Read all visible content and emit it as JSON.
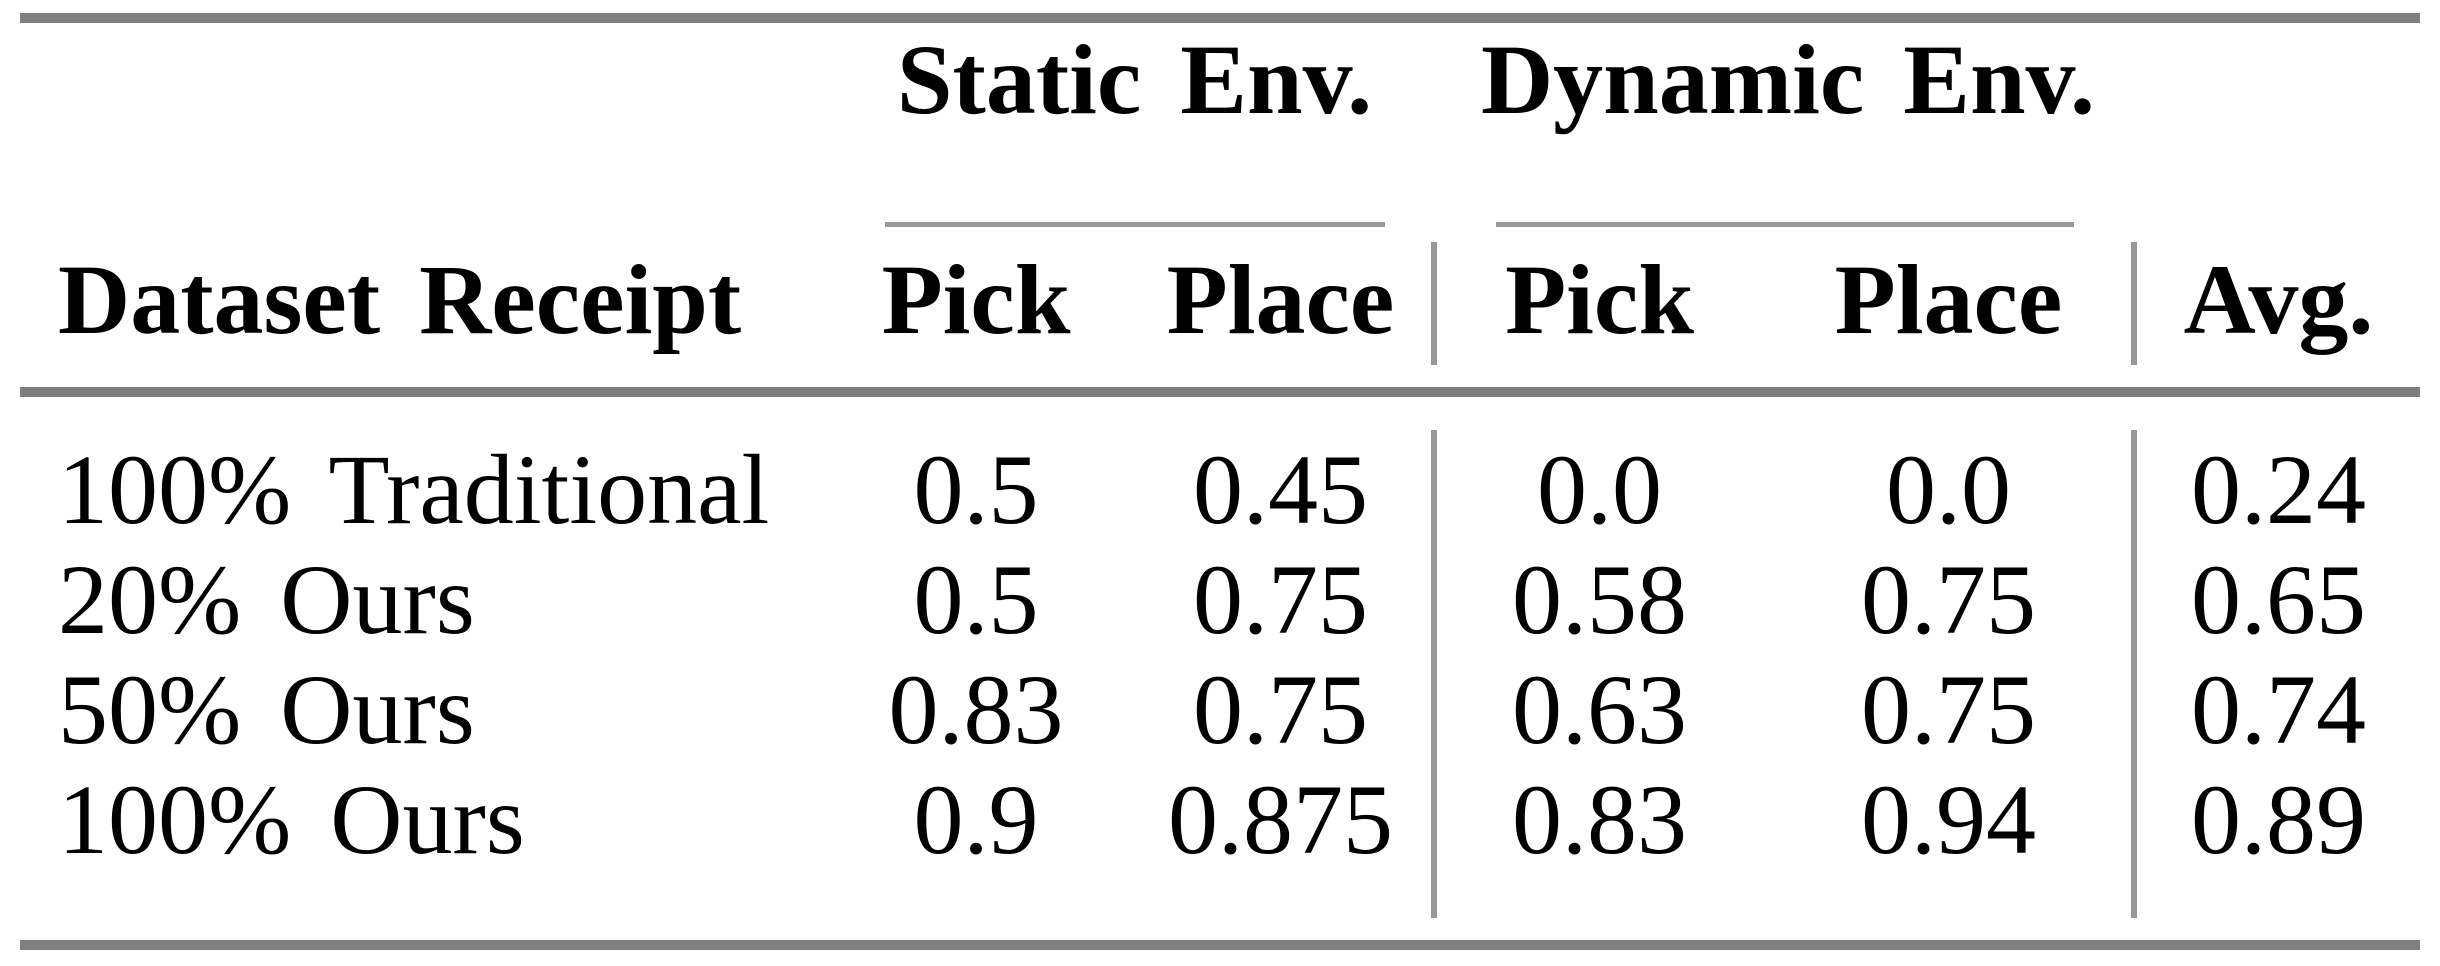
{
  "table": {
    "group_headers": [
      {
        "label": "Static Env."
      },
      {
        "label": "Dynamic Env."
      }
    ],
    "columns": {
      "dataset": "Dataset Receipt",
      "static_pick": "Pick",
      "static_place": "Place",
      "dynamic_pick": "Pick",
      "dynamic_place": "Place",
      "avg": "Avg."
    },
    "rows": [
      {
        "label": "100% Traditional",
        "static_pick": "0.5",
        "static_place": "0.45",
        "dynamic_pick": "0.0",
        "dynamic_place": "0.0",
        "avg": "0.24"
      },
      {
        "label": "20% Ours",
        "static_pick": "0.5",
        "static_place": "0.75",
        "dynamic_pick": "0.58",
        "dynamic_place": "0.75",
        "avg": "0.65"
      },
      {
        "label": "50% Ours",
        "static_pick": "0.83",
        "static_place": "0.75",
        "dynamic_pick": "0.63",
        "dynamic_place": "0.75",
        "avg": "0.74"
      },
      {
        "label": "100% Ours",
        "static_pick": "0.9",
        "static_place": "0.875",
        "dynamic_pick": "0.83",
        "dynamic_place": "0.94",
        "avg": "0.89"
      }
    ],
    "colors": {
      "rule_thick": "#7f7f7f",
      "rule_thin": "#989898",
      "text": "#000000",
      "background": "#ffffff"
    }
  },
  "chart_data": {
    "type": "table",
    "column_groups": [
      "",
      "Static Env.",
      "Static Env.",
      "Dynamic Env.",
      "Dynamic Env.",
      ""
    ],
    "columns": [
      "Dataset Receipt",
      "Pick",
      "Place",
      "Pick",
      "Place",
      "Avg."
    ],
    "rows": [
      [
        "100% Traditional",
        0.5,
        0.45,
        0.0,
        0.0,
        0.24
      ],
      [
        "20% Ours",
        0.5,
        0.75,
        0.58,
        0.75,
        0.65
      ],
      [
        "50% Ours",
        0.83,
        0.75,
        0.63,
        0.75,
        0.74
      ],
      [
        "100% Ours",
        0.9,
        0.875,
        0.83,
        0.94,
        0.89
      ]
    ]
  }
}
